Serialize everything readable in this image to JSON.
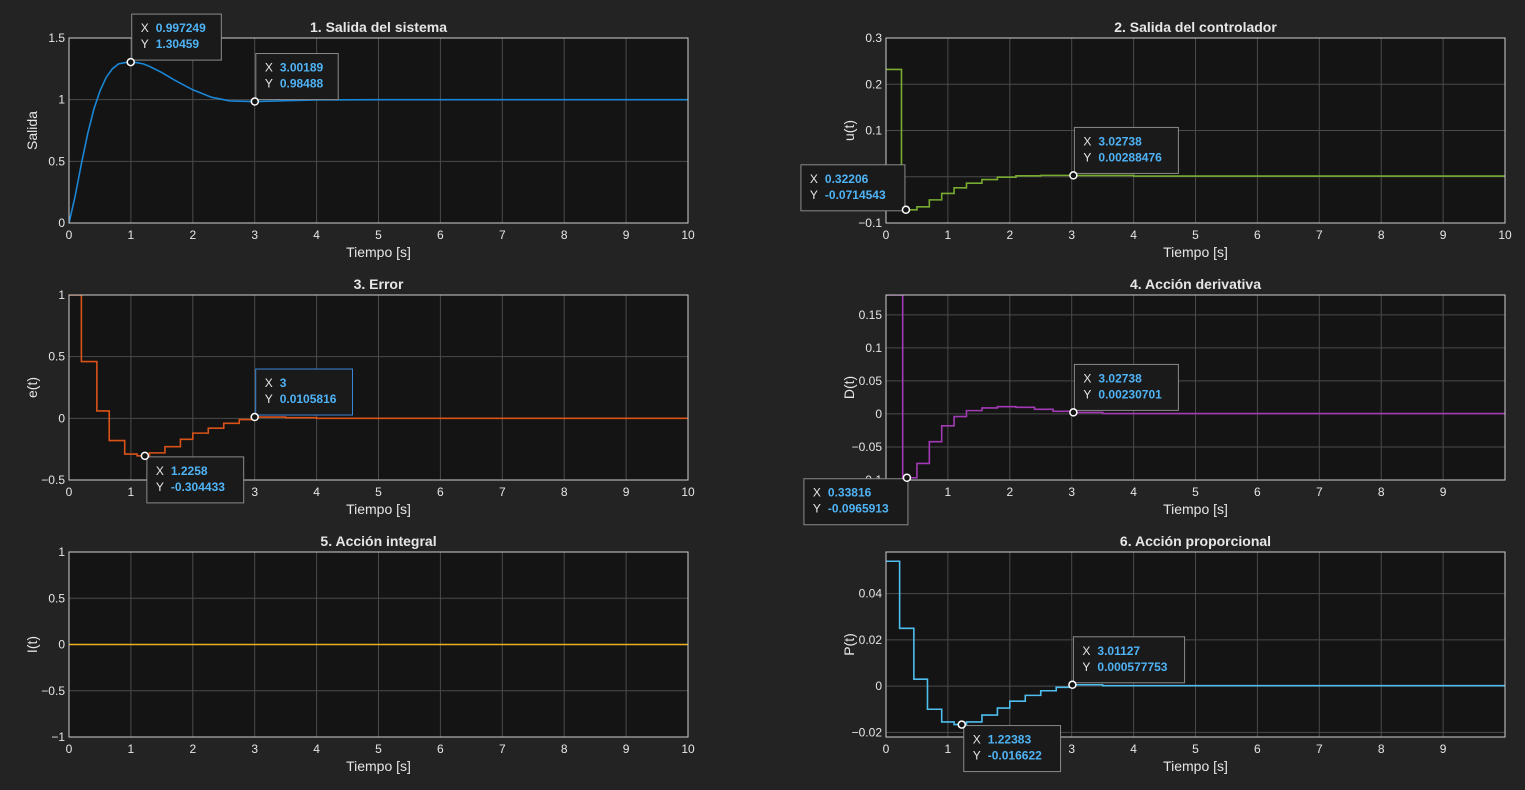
{
  "colors": {
    "background": "#232323",
    "axes_background": "#141414",
    "grid": "#4a4a4a",
    "text": "#e6e6e6",
    "datatip_value": "#4fb3f5"
  },
  "chart_data": [
    {
      "type": "line",
      "title": "1. Salida del sistema",
      "xlabel": "Tiempo [s]",
      "ylabel": "Salida",
      "xlim": [
        0,
        10
      ],
      "ylim": [
        0,
        1.5
      ],
      "xticks": [
        0,
        1,
        2,
        3,
        4,
        5,
        6,
        7,
        8,
        9,
        10
      ],
      "yticks": [
        0,
        0.5,
        1,
        1.5
      ],
      "ytick_labels": [
        "0",
        "0.5",
        "1",
        "1.5"
      ],
      "grid": true,
      "series": [
        {
          "color": "#1a86d6",
          "stairs": false,
          "x": [
            0,
            0.1,
            0.2,
            0.3,
            0.4,
            0.5,
            0.6,
            0.7,
            0.8,
            0.9,
            1.0,
            1.1,
            1.2,
            1.3,
            1.5,
            1.7,
            2.0,
            2.3,
            2.6,
            3.0,
            3.5,
            4.0,
            5.0,
            6.0,
            7.0,
            8.0,
            9.0,
            10.0
          ],
          "y": [
            0,
            0.22,
            0.48,
            0.72,
            0.92,
            1.07,
            1.18,
            1.25,
            1.29,
            1.3,
            1.3046,
            1.3,
            1.29,
            1.27,
            1.22,
            1.16,
            1.08,
            1.02,
            0.99,
            0.9849,
            0.992,
            0.998,
            1.0,
            1.0,
            1.0,
            1.0,
            1.0,
            1.0
          ]
        }
      ],
      "datatips": [
        {
          "x": 0.997249,
          "y": 1.30459,
          "x_text": "0.997249",
          "y_text": "1.30459",
          "placement": "top-right"
        },
        {
          "x": 3.00189,
          "y": 0.98488,
          "x_text": "3.00189",
          "y_text": "0.98488",
          "placement": "top-right"
        }
      ]
    },
    {
      "type": "line",
      "title": "2. Salida del controlador",
      "xlabel": "Tiempo [s]",
      "ylabel": "u(t)",
      "xlim": [
        0,
        10
      ],
      "ylim": [
        -0.1,
        0.3
      ],
      "xticks": [
        0,
        1,
        2,
        3,
        4,
        5,
        6,
        7,
        8,
        9,
        10
      ],
      "yticks": [
        -0.1,
        0,
        0.1,
        0.2,
        0.3
      ],
      "ytick_labels": [
        "−0.1",
        "0",
        "0.1",
        "0.2",
        "0.3"
      ],
      "grid": true,
      "series": [
        {
          "color": "#77ac30",
          "stairs": true,
          "x": [
            0,
            0.25,
            0.3,
            0.5,
            0.7,
            0.9,
            1.1,
            1.3,
            1.55,
            1.8,
            2.1,
            2.5,
            3.0,
            4.0,
            10.0
          ],
          "y": [
            0.232,
            -0.071,
            -0.0714543,
            -0.065,
            -0.05,
            -0.036,
            -0.024,
            -0.014,
            -0.006,
            -0.001,
            0.002,
            0.003,
            0.00288,
            0.0015,
            0.0
          ]
        }
      ],
      "datatips": [
        {
          "x": 0.32206,
          "y": -0.0714543,
          "x_text": "0.32206",
          "y_text": "-0.0714543",
          "placement": "top-left"
        },
        {
          "x": 3.02738,
          "y": 0.00288476,
          "x_text": "3.02738",
          "y_text": "0.00288476",
          "placement": "top-right"
        }
      ]
    },
    {
      "type": "line",
      "title": "3. Error",
      "xlabel": "Tiempo [s]",
      "ylabel": "e(t)",
      "xlim": [
        0,
        10
      ],
      "ylim": [
        -0.5,
        1
      ],
      "xticks": [
        0,
        1,
        2,
        3,
        4,
        5,
        6,
        7,
        8,
        9,
        10
      ],
      "yticks": [
        -0.5,
        0,
        0.5,
        1
      ],
      "ytick_labels": [
        "−0.5",
        "0",
        "0.5",
        "1"
      ],
      "grid": true,
      "series": [
        {
          "color": "#d95319",
          "stairs": true,
          "x": [
            0,
            0.2,
            0.45,
            0.65,
            0.9,
            1.1,
            1.3,
            1.55,
            1.8,
            2.0,
            2.25,
            2.5,
            2.75,
            3.0,
            3.5,
            4.0,
            10.0
          ],
          "y": [
            1.0,
            0.46,
            0.06,
            -0.18,
            -0.29,
            -0.304,
            -0.28,
            -0.23,
            -0.17,
            -0.12,
            -0.08,
            -0.04,
            -0.01,
            0.0106,
            0.005,
            0.0,
            0.0
          ]
        }
      ],
      "datatips": [
        {
          "x": 1.2258,
          "y": -0.304433,
          "x_text": "1.2258",
          "y_text": "-0.304433",
          "placement": "bottom-right"
        },
        {
          "x": 3,
          "y": 0.0105816,
          "x_text": "3",
          "y_text": "0.0105816",
          "placement": "top-right",
          "highlight": true
        }
      ]
    },
    {
      "type": "line",
      "title": "4. Acción derivativa",
      "xlabel": "Tiempo [s]",
      "ylabel": "D(t)",
      "xlim": [
        0,
        10
      ],
      "ylim": [
        -0.1,
        0.18
      ],
      "xticks": [
        0,
        1,
        2,
        3,
        4,
        5,
        6,
        7,
        8,
        9
      ],
      "yticks": [
        -0.1,
        -0.05,
        0,
        0.05,
        0.1,
        0.15
      ],
      "ytick_labels": [
        "−0.1",
        "−0.05",
        "0",
        "0.05",
        "0.1",
        "0.15"
      ],
      "grid": true,
      "series": [
        {
          "color": "#a23ab5",
          "stairs": true,
          "x": [
            0,
            0.27,
            0.34,
            0.5,
            0.7,
            0.9,
            1.1,
            1.3,
            1.55,
            1.8,
            2.1,
            2.4,
            2.7,
            3.0,
            3.5,
            10.0
          ],
          "y": [
            0.18,
            -0.0966,
            -0.0965913,
            -0.075,
            -0.042,
            -0.018,
            -0.004,
            0.005,
            0.009,
            0.011,
            0.01,
            0.007,
            0.004,
            0.0023,
            0.0005,
            0.0
          ]
        }
      ],
      "datatips": [
        {
          "x": 0.33816,
          "y": -0.0965913,
          "x_text": "0.33816",
          "y_text": "-0.0965913",
          "placement": "bottom-left"
        },
        {
          "x": 3.02738,
          "y": 0.00230701,
          "x_text": "3.02738",
          "y_text": "0.00230701",
          "placement": "top-right"
        }
      ]
    },
    {
      "type": "line",
      "title": "5. Acción integral",
      "xlabel": "Tiempo [s]",
      "ylabel": "I(t)",
      "xlim": [
        0,
        10
      ],
      "ylim": [
        -1,
        1
      ],
      "xticks": [
        0,
        1,
        2,
        3,
        4,
        5,
        6,
        7,
        8,
        9,
        10
      ],
      "yticks": [
        -1,
        -0.5,
        0,
        0.5,
        1
      ],
      "ytick_labels": [
        "−1",
        "−0.5",
        "0",
        "0.5",
        "1"
      ],
      "grid": true,
      "series": [
        {
          "color": "#edb120",
          "stairs": false,
          "x": [
            0,
            10
          ],
          "y": [
            0,
            0
          ]
        }
      ],
      "datatips": []
    },
    {
      "type": "line",
      "title": "6. Acción proporcional",
      "xlabel": "Tiempo [s]",
      "ylabel": "P(t)",
      "xlim": [
        0,
        10
      ],
      "ylim": [
        -0.022,
        0.058
      ],
      "xticks": [
        0,
        1,
        2,
        3,
        4,
        5,
        6,
        7,
        8,
        9
      ],
      "yticks": [
        -0.02,
        0,
        0.02,
        0.04
      ],
      "ytick_labels": [
        "−0.02",
        "0",
        "0.02",
        "0.04"
      ],
      "grid": true,
      "series": [
        {
          "color": "#4dbeee",
          "stairs": true,
          "x": [
            0,
            0.22,
            0.45,
            0.67,
            0.9,
            1.1,
            1.3,
            1.55,
            1.8,
            2.0,
            2.25,
            2.5,
            2.75,
            3.0,
            3.5,
            10.0
          ],
          "y": [
            0.054,
            0.025,
            0.003,
            -0.01,
            -0.0155,
            -0.0166,
            -0.0155,
            -0.0125,
            -0.0095,
            -0.0065,
            -0.004,
            -0.002,
            -0.0005,
            0.0006,
            0.0002,
            0.0
          ]
        }
      ],
      "datatips": [
        {
          "x": 1.22383,
          "y": -0.016622,
          "x_text": "1.22383",
          "y_text": "-0.016622",
          "placement": "bottom-right"
        },
        {
          "x": 3.01127,
          "y": 0.000577753,
          "x_text": "3.01127",
          "y_text": "0.000577753",
          "placement": "top-right"
        }
      ]
    }
  ]
}
